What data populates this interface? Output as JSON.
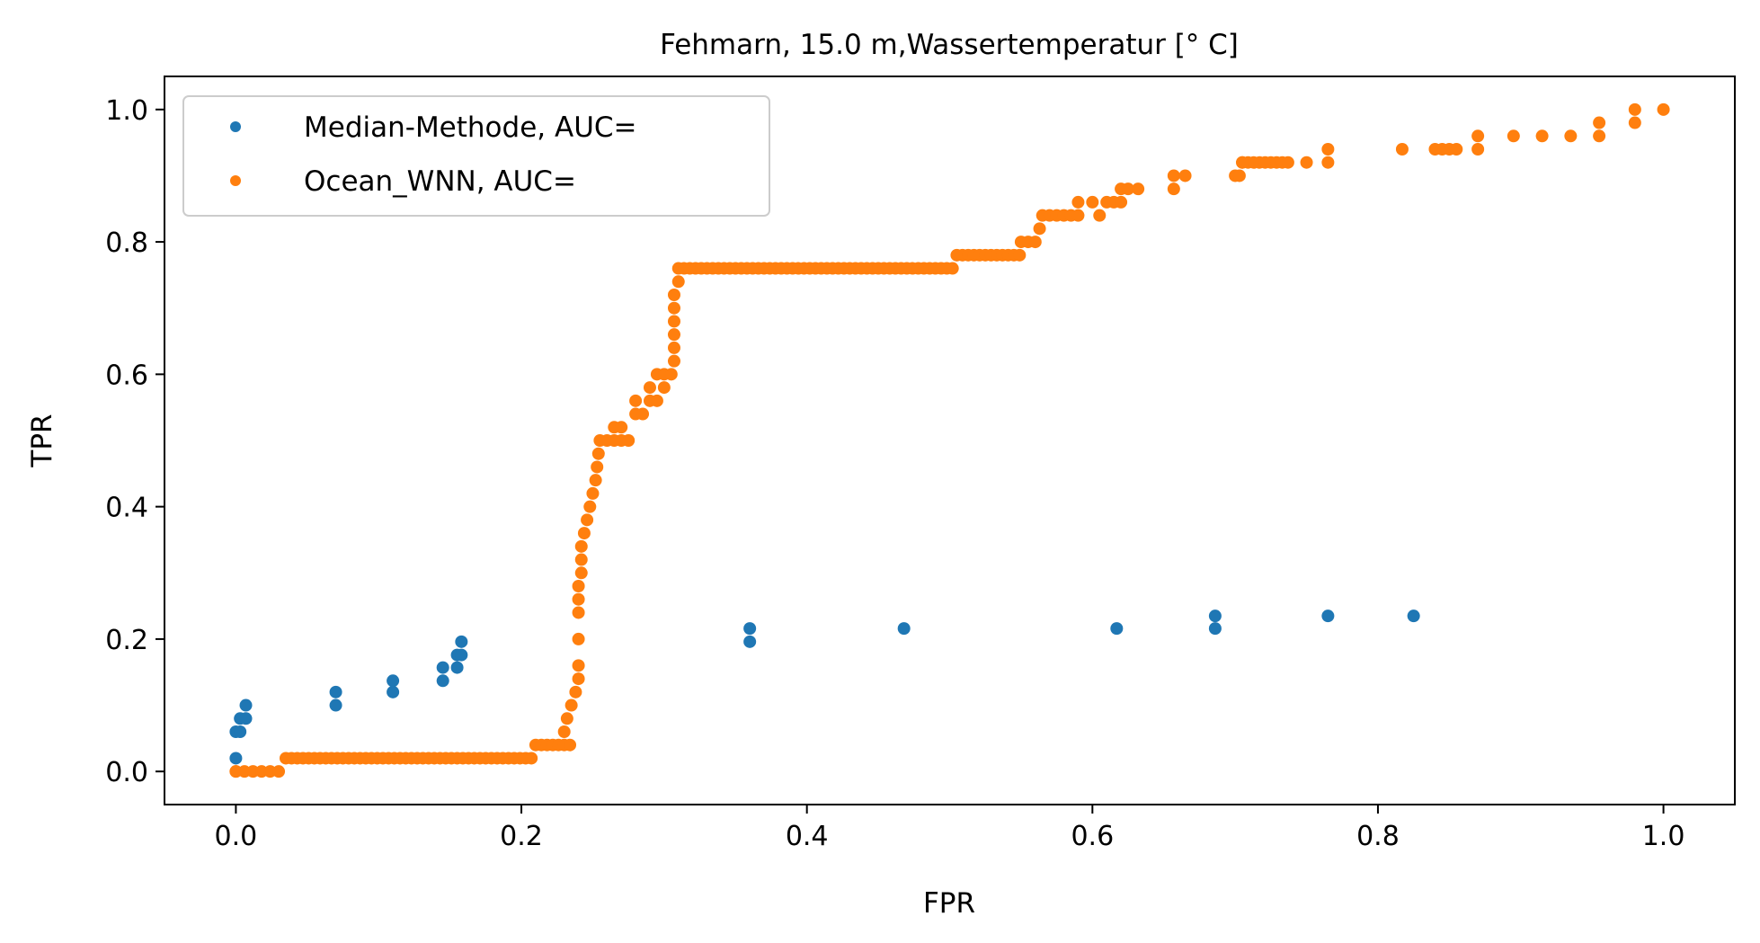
{
  "chart_data": {
    "type": "scatter",
    "title": "Fehmarn, 15.0 m,Wassertemperatur [° C]",
    "xlabel": "FPR",
    "ylabel": "TPR",
    "xlim": [
      -0.05,
      1.05
    ],
    "ylim": [
      -0.05,
      1.05
    ],
    "x_ticks": [
      "0.0",
      "0.2",
      "0.4",
      "0.6",
      "0.8",
      "1.0"
    ],
    "y_ticks": [
      "0.0",
      "0.2",
      "0.4",
      "0.6",
      "0.8",
      "1.0"
    ],
    "grid": false,
    "legend_position": "upper-left",
    "series": [
      {
        "name": "Median-Methode, AUC=",
        "color": "#1f77b4",
        "points": [
          [
            0.0,
            0.02
          ],
          [
            0.0,
            0.06
          ],
          [
            0.003,
            0.06
          ],
          [
            0.003,
            0.08
          ],
          [
            0.007,
            0.08
          ],
          [
            0.007,
            0.1
          ],
          [
            0.07,
            0.1
          ],
          [
            0.07,
            0.12
          ],
          [
            0.11,
            0.12
          ],
          [
            0.11,
            0.137
          ],
          [
            0.145,
            0.137
          ],
          [
            0.145,
            0.157
          ],
          [
            0.155,
            0.157
          ],
          [
            0.155,
            0.176
          ],
          [
            0.158,
            0.176
          ],
          [
            0.158,
            0.196
          ],
          [
            0.36,
            0.196
          ],
          [
            0.36,
            0.216
          ],
          [
            0.468,
            0.216
          ],
          [
            0.617,
            0.216
          ],
          [
            0.686,
            0.216
          ],
          [
            0.686,
            0.235
          ],
          [
            0.765,
            0.235
          ],
          [
            0.825,
            0.235
          ]
        ]
      },
      {
        "name": "Ocean_WNN, AUC=",
        "color": "#ff7f0e",
        "segments": [
          {
            "y": 0.0,
            "x_from": 0.0,
            "x_to": 0.035,
            "step": 0.006
          },
          {
            "y": 0.02,
            "x_from": 0.035,
            "x_to": 0.21,
            "step": 0.004
          },
          {
            "y": 0.04,
            "x_from": 0.21,
            "x_to": 0.235,
            "step": 0.004
          },
          {
            "y": 0.76,
            "x_from": 0.31,
            "x_to": 0.505,
            "step": 0.004
          },
          {
            "y": 0.78,
            "x_from": 0.505,
            "x_to": 0.55,
            "step": 0.004
          },
          {
            "y": 0.92,
            "x_from": 0.705,
            "x_to": 0.74,
            "step": 0.004
          }
        ],
        "points": [
          [
            0.0,
            0.0
          ],
          [
            0.23,
            0.06
          ],
          [
            0.232,
            0.08
          ],
          [
            0.235,
            0.1
          ],
          [
            0.238,
            0.12
          ],
          [
            0.24,
            0.14
          ],
          [
            0.24,
            0.16
          ],
          [
            0.24,
            0.2
          ],
          [
            0.24,
            0.24
          ],
          [
            0.24,
            0.26
          ],
          [
            0.24,
            0.28
          ],
          [
            0.242,
            0.3
          ],
          [
            0.242,
            0.32
          ],
          [
            0.242,
            0.34
          ],
          [
            0.244,
            0.36
          ],
          [
            0.246,
            0.38
          ],
          [
            0.248,
            0.4
          ],
          [
            0.25,
            0.42
          ],
          [
            0.252,
            0.44
          ],
          [
            0.253,
            0.46
          ],
          [
            0.254,
            0.48
          ],
          [
            0.255,
            0.5
          ],
          [
            0.26,
            0.5
          ],
          [
            0.265,
            0.5
          ],
          [
            0.27,
            0.5
          ],
          [
            0.275,
            0.5
          ],
          [
            0.265,
            0.52
          ],
          [
            0.27,
            0.52
          ],
          [
            0.28,
            0.54
          ],
          [
            0.285,
            0.54
          ],
          [
            0.28,
            0.56
          ],
          [
            0.29,
            0.56
          ],
          [
            0.295,
            0.56
          ],
          [
            0.3,
            0.58
          ],
          [
            0.29,
            0.58
          ],
          [
            0.295,
            0.6
          ],
          [
            0.3,
            0.6
          ],
          [
            0.305,
            0.6
          ],
          [
            0.307,
            0.62
          ],
          [
            0.307,
            0.64
          ],
          [
            0.307,
            0.66
          ],
          [
            0.307,
            0.68
          ],
          [
            0.307,
            0.7
          ],
          [
            0.307,
            0.72
          ],
          [
            0.31,
            0.74
          ],
          [
            0.55,
            0.8
          ],
          [
            0.555,
            0.8
          ],
          [
            0.56,
            0.8
          ],
          [
            0.563,
            0.82
          ],
          [
            0.565,
            0.84
          ],
          [
            0.57,
            0.84
          ],
          [
            0.575,
            0.84
          ],
          [
            0.58,
            0.84
          ],
          [
            0.585,
            0.84
          ],
          [
            0.59,
            0.84
          ],
          [
            0.59,
            0.86
          ],
          [
            0.6,
            0.86
          ],
          [
            0.605,
            0.84
          ],
          [
            0.61,
            0.86
          ],
          [
            0.615,
            0.86
          ],
          [
            0.62,
            0.86
          ],
          [
            0.62,
            0.88
          ],
          [
            0.625,
            0.88
          ],
          [
            0.632,
            0.88
          ],
          [
            0.657,
            0.88
          ],
          [
            0.657,
            0.9
          ],
          [
            0.665,
            0.9
          ],
          [
            0.7,
            0.9
          ],
          [
            0.703,
            0.9
          ],
          [
            0.705,
            0.92
          ],
          [
            0.75,
            0.92
          ],
          [
            0.765,
            0.92
          ],
          [
            0.765,
            0.94
          ],
          [
            0.817,
            0.94
          ],
          [
            0.84,
            0.94
          ],
          [
            0.845,
            0.94
          ],
          [
            0.85,
            0.94
          ],
          [
            0.855,
            0.94
          ],
          [
            0.87,
            0.94
          ],
          [
            0.87,
            0.96
          ],
          [
            0.895,
            0.96
          ],
          [
            0.915,
            0.96
          ],
          [
            0.935,
            0.96
          ],
          [
            0.955,
            0.96
          ],
          [
            0.955,
            0.98
          ],
          [
            0.98,
            0.98
          ],
          [
            0.98,
            1.0
          ],
          [
            1.0,
            1.0
          ]
        ]
      }
    ]
  }
}
